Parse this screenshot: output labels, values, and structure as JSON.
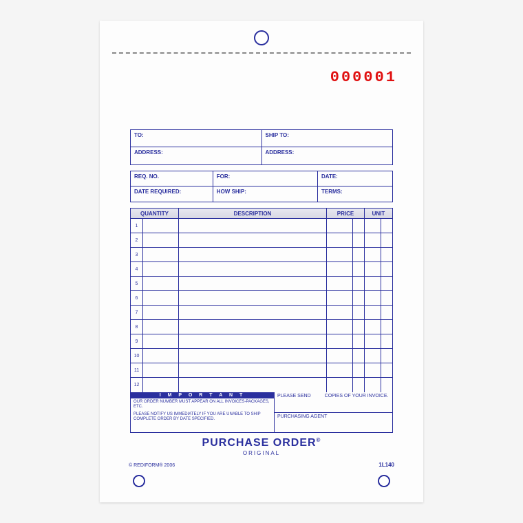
{
  "serial_number": "000001",
  "address": {
    "to_label": "TO:",
    "ship_to_label": "SHIP TO:",
    "address_label_left": "ADDRESS:",
    "address_label_right": "ADDRESS:"
  },
  "req": {
    "req_no": "REQ. NO.",
    "for": "FOR:",
    "date": "DATE:",
    "date_required": "DATE REQUIRED:",
    "how_ship": "HOW SHIP:",
    "terms": "TERMS:"
  },
  "columns": {
    "quantity": "QUANTITY",
    "description": "DESCRIPTION",
    "price": "PRICE",
    "unit": "UNIT"
  },
  "row_numbers": [
    "1",
    "2",
    "3",
    "4",
    "5",
    "6",
    "7",
    "8",
    "9",
    "10",
    "11",
    "12"
  ],
  "notes": {
    "important_label": "I M P O R T A N T",
    "line1": "OUR ORDER NUMBER MUST APPEAR ON ALL INVOICES-PACKAGES, ETC.",
    "line2": "PLEASE NOTIFY US IMMEDIATELY IF YOU ARE UNABLE TO SHIP COMPLETE ORDER BY DATE SPECIFIED.",
    "please_send": "PLEASE SEND",
    "copies": "COPIES OF YOUR INVOICE.",
    "purchasing_agent": "PURCHASING AGENT"
  },
  "title": "PURCHASE ORDER",
  "subtitle": "ORIGINAL",
  "copyright": "© REDIFORM® 2006",
  "form_number": "1L140",
  "colors": {
    "ink": "#2a2f9e",
    "serial": "#e01010",
    "paper": "#fdfdfd"
  }
}
